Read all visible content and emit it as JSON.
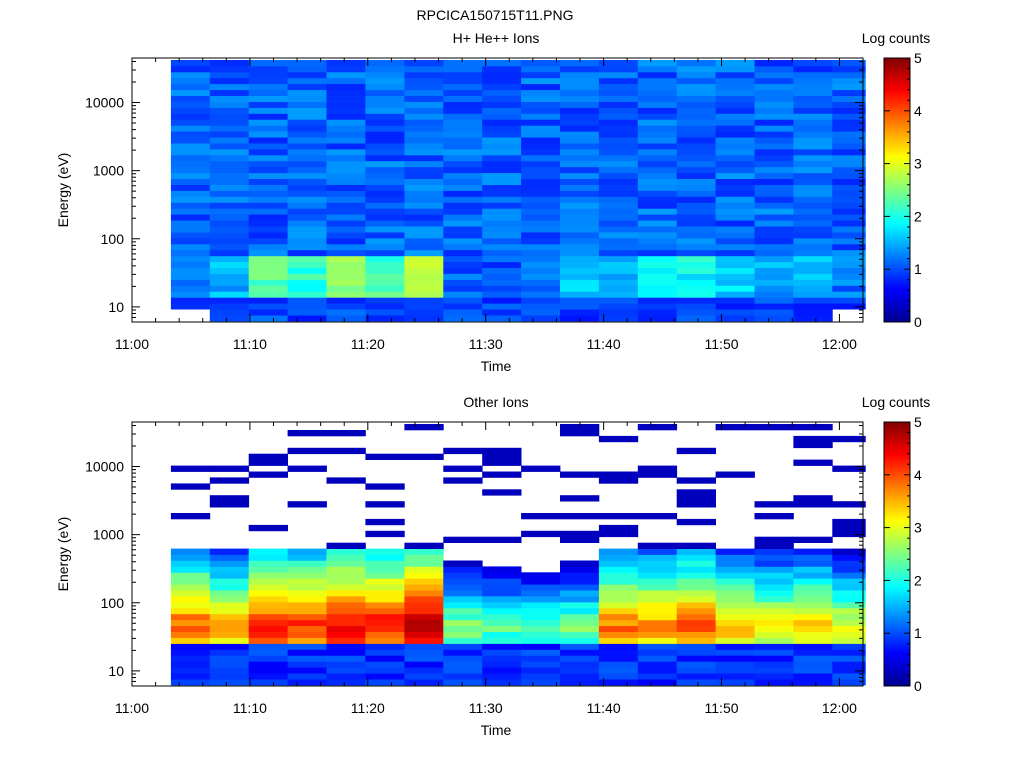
{
  "page": {
    "title": "RPCICA150715T11.PNG"
  },
  "chart_data": [
    {
      "type": "heatmap",
      "title": "H+ He++ Ions",
      "xlabel": "Time",
      "ylabel": "Energy (eV)",
      "x_ticks": [
        "11:00",
        "11:10",
        "11:20",
        "11:30",
        "11:40",
        "11:50",
        "12:00"
      ],
      "x_range_minutes": [
        0,
        62
      ],
      "y_scale": "log",
      "y_ticks": [
        "10",
        "100",
        "1000",
        "10000"
      ],
      "y_range": [
        6,
        45000
      ],
      "colorbar": {
        "label": "Log counts",
        "ticks": [
          "0",
          "1",
          "2",
          "3",
          "4",
          "5"
        ],
        "range": [
          0,
          5
        ]
      },
      "columns_start_minutes": [
        3.3,
        6.6,
        9.9,
        13.2,
        16.5,
        19.8,
        23.1,
        26.4,
        29.7,
        33.0,
        36.3,
        39.6,
        42.9,
        46.2,
        49.5,
        52.8,
        56.1,
        59.4
      ],
      "columns_end_minutes": [
        6.6,
        9.9,
        13.2,
        16.5,
        19.8,
        23.1,
        26.4,
        29.7,
        33.0,
        36.3,
        39.6,
        42.9,
        46.2,
        49.5,
        52.8,
        56.1,
        59.4,
        62.2
      ],
      "log_counts_low_energy_10_to_60eV": [
        1.2,
        1.5,
        2.3,
        2.1,
        2.6,
        2.2,
        2.7,
        1.1,
        1.0,
        1.1,
        1.6,
        1.5,
        1.8,
        1.9,
        1.7,
        1.4,
        1.6,
        1.2
      ],
      "log_counts_background_mean": 1.1
    },
    {
      "type": "heatmap",
      "title": "Other Ions",
      "xlabel": "Time",
      "ylabel": "Energy (eV)",
      "x_ticks": [
        "11:00",
        "11:10",
        "11:20",
        "11:30",
        "11:40",
        "11:50",
        "12:00"
      ],
      "x_range_minutes": [
        0,
        62
      ],
      "y_scale": "log",
      "y_ticks": [
        "10",
        "100",
        "1000",
        "10000"
      ],
      "y_range": [
        6,
        45000
      ],
      "colorbar": {
        "label": "Log counts",
        "ticks": [
          "0",
          "1",
          "2",
          "3",
          "4",
          "5"
        ],
        "range": [
          0,
          5
        ]
      },
      "peak_energy_eV": 45,
      "log_counts_peak_per_column": [
        4.0,
        3.6,
        4.3,
        4.2,
        4.5,
        4.4,
        4.8,
        2.6,
        2.4,
        2.3,
        2.5,
        3.9,
        3.8,
        4.0,
        3.6,
        3.3,
        3.5,
        3.1
      ]
    }
  ]
}
